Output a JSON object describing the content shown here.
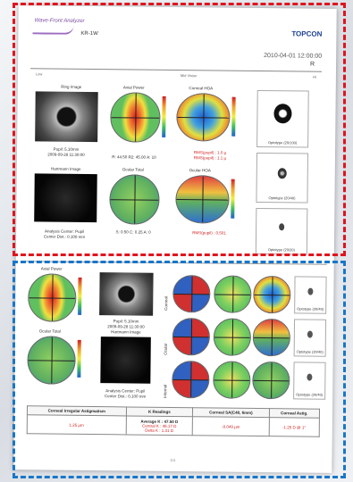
{
  "header": {
    "brand": "Wave-Front Analyzer",
    "model": "KR-1W",
    "logo": "TOPCON",
    "datetime": "2010-04-01 12:00:00",
    "eye": "R",
    "scale_left": "Low",
    "scale_mid": "Mid Vision",
    "scale_right": "Hi"
  },
  "top": {
    "ring_image_label": "Ring Image",
    "axial_power_label": "Axial Power",
    "corneal_hoa_label": "Corneal HOA",
    "pupil_text": "Pupil: 5.10mm",
    "pupil_date": "2009-09-28 11:30:00",
    "k_value": "R: 44.50 R2: 45.00 A: 10",
    "rms_1": "RMS(pupil) : 1.0 µ",
    "rms_2": "RMS(pupil) : 1.1 µ",
    "hartmann_label": "Hartmann Image",
    "ocular_total_label": "Ocular Total",
    "ocular_hoa_label": "Ocular HOA",
    "analysis_text": "Analysis Center: Pupil",
    "analysis_sub": "Center Dist.: 0.100 mm",
    "ocular_values": "S: 0.50 C: 0.25 A: 0",
    "rms_ocular": "RMS(pupil) : 0.501",
    "thumbs": [
      "Optotype (20/100)",
      "Optotype (20/40)",
      "Optotype (20/20)"
    ]
  },
  "bottom": {
    "axial_label": "Axial Power",
    "pupil_text": "Pupil: 5.10mm",
    "pupil_date": "2009-09-28 11:30:00",
    "hartmann_label": "Hartmann Image",
    "ocular_total_label": "Ocular Total",
    "analysis_text": "Analysis Center: Pupil",
    "analysis_sub": "Center Dist.: 0.100 mm",
    "row_labels": [
      "Corneal",
      "Ocular",
      "Internal"
    ],
    "thumbs": [
      "Optotype (20/40)",
      "Optotype (20/40)",
      "Optotype (20/40)"
    ],
    "table_headers": [
      "Corneal Irregular Astigmatism",
      "K Readings",
      "Corneal SA(C40, 6mm)",
      "Corneal Astig."
    ],
    "table_values": [
      "1.25 µm",
      "-0.049 µm",
      "-1.25 D @ 1°"
    ],
    "average_k": "Average K : 47.50 D",
    "central_k": "Central K : 46.17 D",
    "delta_k": "Delta K : 1.31 D",
    "footer": "1/1"
  },
  "colors": {
    "red_box": "#e0141e",
    "blue_box": "#1976c8"
  }
}
